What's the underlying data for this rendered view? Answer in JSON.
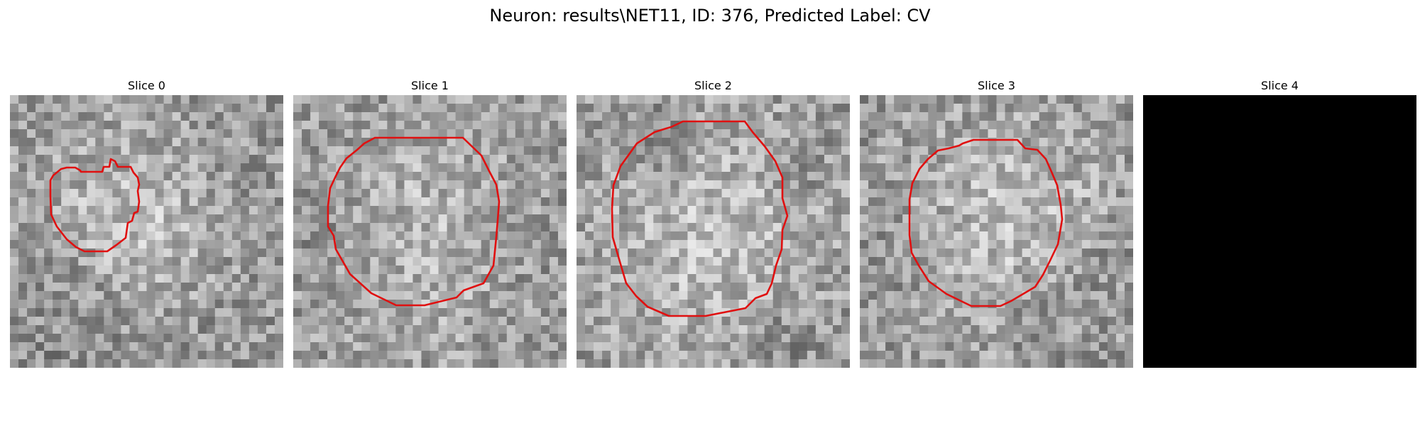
{
  "figure": {
    "title": "Neuron: results\\NET11, ID: 376, Predicted Label: CV"
  },
  "contour_color": "#e01010",
  "panels": [
    {
      "title": "Slice 0",
      "seed": 11,
      "base": [
        [
          150,
          160,
          95,
          30
        ],
        [
          180,
          220,
          70,
          20
        ],
        [
          95,
          430,
          55,
          -12
        ],
        [
          310,
          450,
          40,
          -18
        ],
        [
          110,
          270,
          70,
          -18
        ]
      ],
      "contour": [
        [
          100,
          108
        ],
        [
          130,
          108
        ],
        [
          132,
          101
        ],
        [
          140,
          101
        ],
        [
          142,
          90
        ],
        [
          148,
          93
        ],
        [
          152,
          101
        ],
        [
          170,
          101
        ],
        [
          174,
          109
        ],
        [
          180,
          116
        ],
        [
          182,
          126
        ],
        [
          180,
          135
        ],
        [
          182,
          150
        ],
        [
          180,
          164
        ],
        [
          175,
          166
        ],
        [
          172,
          177
        ],
        [
          166,
          180
        ],
        [
          163,
          201
        ],
        [
          150,
          211
        ],
        [
          137,
          220
        ],
        [
          105,
          220
        ],
        [
          93,
          214
        ],
        [
          80,
          203
        ],
        [
          66,
          185
        ],
        [
          58,
          168
        ],
        [
          57,
          142
        ],
        [
          57,
          120
        ],
        [
          61,
          113
        ],
        [
          72,
          104
        ],
        [
          80,
          102
        ],
        [
          92,
          102
        ],
        [
          99,
          106
        ]
      ]
    },
    {
      "title": "Slice 1",
      "seed": 23,
      "base": [
        [
          195,
          190,
          120,
          35
        ],
        [
          75,
          200,
          60,
          -15
        ],
        [
          320,
          210,
          55,
          -15
        ]
      ],
      "contour": [
        [
          115,
          60
        ],
        [
          239,
          60
        ],
        [
          265,
          85
        ],
        [
          276,
          107
        ],
        [
          286,
          126
        ],
        [
          290,
          150
        ],
        [
          288,
          176
        ],
        [
          286,
          200
        ],
        [
          282,
          240
        ],
        [
          268,
          265
        ],
        [
          240,
          275
        ],
        [
          230,
          285
        ],
        [
          185,
          296
        ],
        [
          145,
          296
        ],
        [
          110,
          279
        ],
        [
          80,
          252
        ],
        [
          60,
          217
        ],
        [
          57,
          198
        ],
        [
          49,
          185
        ],
        [
          49,
          156
        ],
        [
          52,
          131
        ],
        [
          59,
          116
        ],
        [
          66,
          102
        ],
        [
          75,
          89
        ],
        [
          90,
          77
        ],
        [
          100,
          68
        ]
      ]
    },
    {
      "title": "Slice 2",
      "seed": 37,
      "base": [
        [
          195,
          200,
          130,
          40
        ],
        [
          115,
          65,
          35,
          -25
        ],
        [
          308,
          100,
          30,
          -25
        ],
        [
          300,
          340,
          40,
          -22
        ]
      ],
      "contour": [
        [
          150,
          37
        ],
        [
          237,
          37
        ],
        [
          248,
          52
        ],
        [
          265,
          72
        ],
        [
          280,
          93
        ],
        [
          290,
          116
        ],
        [
          290,
          145
        ],
        [
          297,
          170
        ],
        [
          290,
          190
        ],
        [
          289,
          217
        ],
        [
          281,
          240
        ],
        [
          275,
          265
        ],
        [
          268,
          280
        ],
        [
          252,
          286
        ],
        [
          238,
          300
        ],
        [
          182,
          311
        ],
        [
          130,
          311
        ],
        [
          100,
          298
        ],
        [
          84,
          283
        ],
        [
          70,
          265
        ],
        [
          62,
          238
        ],
        [
          51,
          200
        ],
        [
          50,
          160
        ],
        [
          52,
          127
        ],
        [
          62,
          100
        ],
        [
          85,
          68
        ],
        [
          110,
          52
        ],
        [
          126,
          47
        ],
        [
          133,
          45
        ]
      ]
    },
    {
      "title": "Slice 3",
      "seed": 53,
      "base": [
        [
          205,
          190,
          115,
          40
        ],
        [
          65,
          230,
          40,
          -18
        ],
        [
          260,
          320,
          40,
          -25
        ],
        [
          340,
          240,
          40,
          -15
        ]
      ],
      "contour": [
        [
          160,
          63
        ],
        [
          222,
          63
        ],
        [
          233,
          75
        ],
        [
          250,
          77
        ],
        [
          262,
          90
        ],
        [
          270,
          108
        ],
        [
          278,
          127
        ],
        [
          283,
          155
        ],
        [
          285,
          175
        ],
        [
          279,
          210
        ],
        [
          268,
          233
        ],
        [
          258,
          253
        ],
        [
          247,
          270
        ],
        [
          213,
          290
        ],
        [
          198,
          297
        ],
        [
          157,
          297
        ],
        [
          122,
          280
        ],
        [
          97,
          262
        ],
        [
          83,
          240
        ],
        [
          73,
          222
        ],
        [
          70,
          197
        ],
        [
          70,
          147
        ],
        [
          74,
          124
        ],
        [
          84,
          104
        ],
        [
          96,
          90
        ],
        [
          110,
          78
        ],
        [
          125,
          75
        ],
        [
          140,
          71
        ],
        [
          145,
          68
        ]
      ]
    },
    {
      "title": "Slice 4",
      "seed": 0,
      "blank": true
    }
  ]
}
